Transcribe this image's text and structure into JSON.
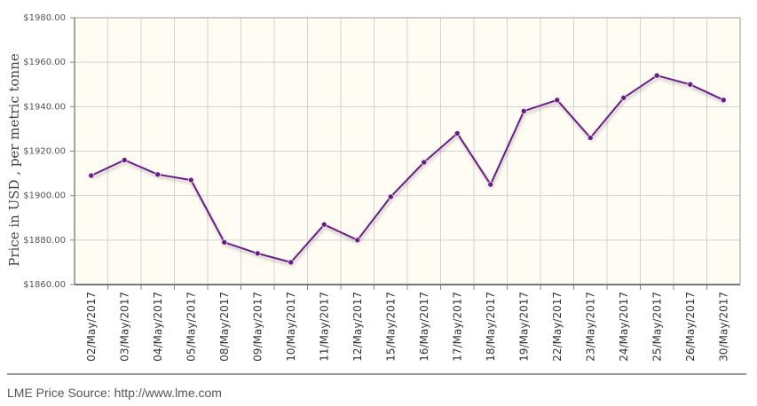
{
  "chart_data": {
    "type": "line",
    "title": "",
    "xlabel": "",
    "ylabel": "Price in USD , per metric tonne",
    "categories": [
      "02/May/2017",
      "03/May/2017",
      "04/May/2017",
      "05/May/2017",
      "08/May/2017",
      "09/May/2017",
      "10/May/2017",
      "11/May/2017",
      "12/May/2017",
      "15/May/2017",
      "16/May/2017",
      "17/May/2017",
      "18/May/2017",
      "19/May/2017",
      "22/May/2017",
      "23/May/2017",
      "24/May/2017",
      "25/May/2017",
      "26/May/2017",
      "30/May/2017"
    ],
    "series": [
      {
        "values": [
          1909,
          1916,
          1909.5,
          1907,
          1879,
          1874,
          1870,
          1887,
          1880,
          1899.5,
          1915,
          1928,
          1905,
          1938,
          1943,
          1926,
          1944,
          1954,
          1950,
          1943
        ]
      }
    ],
    "ylim": [
      1860,
      1980
    ],
    "yticks": [
      1860,
      1880,
      1900,
      1920,
      1940,
      1960,
      1980
    ],
    "ytick_labels": [
      "$1860.00",
      "$1880.00",
      "$1900.00",
      "$1920.00",
      "$1940.00",
      "$1960.00",
      "$1980.00"
    ],
    "grid": true,
    "line_color": "#6a1b8a",
    "plot_background": "#fffdf3"
  },
  "footer": {
    "source_text": "LME Price Source: http://www.lme.com"
  }
}
